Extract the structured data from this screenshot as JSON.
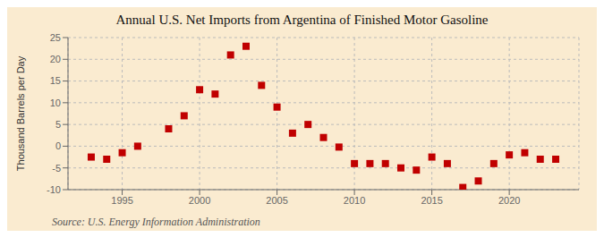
{
  "chart_data": {
    "type": "scatter",
    "title": "Annual U.S. Net Imports from Argentina of Finished Motor Gasoline",
    "ylabel": "Thousand Barrels per Day",
    "annotations": [
      "Source: U.S. Energy Information Administration"
    ],
    "x": [
      1993,
      1994,
      1995,
      1996,
      1998,
      1999,
      2000,
      2001,
      2002,
      2003,
      2004,
      2005,
      2006,
      2007,
      2008,
      2009,
      2010,
      2011,
      2012,
      2013,
      2014,
      2015,
      2016,
      2017,
      2018,
      2019,
      2020,
      2021,
      2022,
      2023
    ],
    "values": [
      -2.5,
      -3.0,
      -1.5,
      0.0,
      4.0,
      7.0,
      13.0,
      12.0,
      21.0,
      23.0,
      14.0,
      9.0,
      3.0,
      5.0,
      2.0,
      -0.2,
      -4.0,
      -4.0,
      -4.0,
      -5.0,
      -5.5,
      -2.5,
      -4.0,
      -9.5,
      -8.0,
      -4.0,
      -2.0,
      -1.5,
      -3.0,
      -3.0
    ],
    "color": "#c00000",
    "marker": "square",
    "xlim": [
      1991.5,
      2024.5
    ],
    "xticks": [
      1995,
      2000,
      2005,
      2010,
      2015,
      2020
    ],
    "ylim": [
      -10,
      25
    ],
    "yticks": [
      -10,
      -5,
      0,
      5,
      10,
      15,
      20,
      25
    ],
    "grid": true
  }
}
